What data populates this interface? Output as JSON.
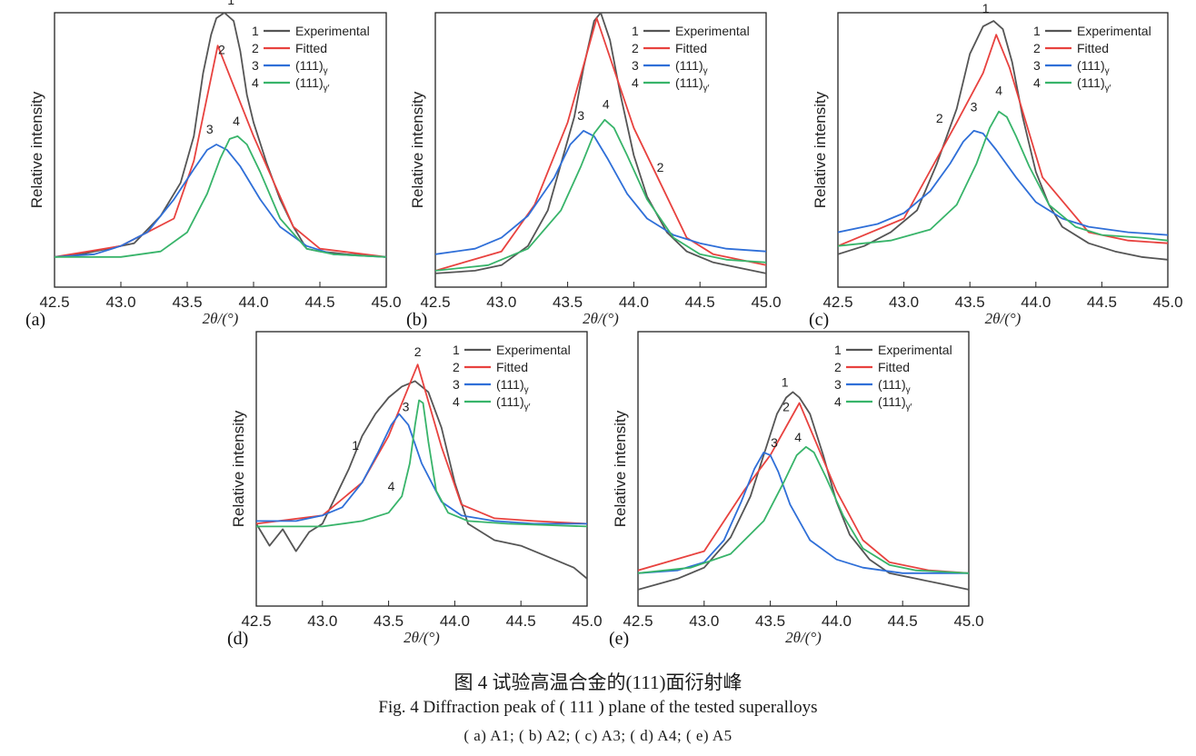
{
  "figure": {
    "caption_cn": "图 4   试验高温合金的(111)面衍射峰",
    "caption_en": "Fig. 4   Diffraction peak of ( 111 ) plane of the tested superalloys",
    "caption_sub": "( a) A1; ( b) A2; ( c) A3; ( d) A4; ( e) A5"
  },
  "chart_data": [
    {
      "type": "line",
      "panel_label": "(a)",
      "xlabel": "2θ/(°)",
      "ylabel": "Relative intensity",
      "xlim": [
        42.5,
        45.0
      ],
      "ylim": [
        0,
        1.0
      ],
      "xticks": [
        "42.5",
        "43.0",
        "43.5",
        "44.0",
        "44.5",
        "45.0"
      ],
      "legend": [
        {
          "num": "1",
          "label": "Experimental",
          "color": "#555555"
        },
        {
          "num": "2",
          "label": "Fitted",
          "color": "#e8423f"
        },
        {
          "num": "3",
          "label": "(111)γ",
          "color": "#2f6fd8"
        },
        {
          "num": "4",
          "label": "(111)γ′",
          "color": "#38b46a"
        }
      ],
      "series": [
        {
          "name": "Experimental",
          "x": [
            42.5,
            42.7,
            42.9,
            43.1,
            43.3,
            43.45,
            43.55,
            43.62,
            43.68,
            43.72,
            43.78,
            43.85,
            43.9,
            43.95,
            44.0,
            44.1,
            44.2,
            44.3,
            44.4,
            44.5,
            44.7,
            45.0
          ],
          "y": [
            0.11,
            0.12,
            0.14,
            0.16,
            0.26,
            0.38,
            0.55,
            0.78,
            0.92,
            0.98,
            1.0,
            0.97,
            0.86,
            0.7,
            0.6,
            0.45,
            0.32,
            0.22,
            0.14,
            0.13,
            0.12,
            0.11
          ]
        },
        {
          "name": "Fitted",
          "x": [
            42.5,
            43.0,
            43.4,
            43.55,
            43.73,
            44.0,
            44.3,
            44.5,
            45.0
          ],
          "y": [
            0.11,
            0.15,
            0.25,
            0.46,
            0.88,
            0.55,
            0.22,
            0.14,
            0.11
          ]
        },
        {
          "name": "(111)γ",
          "x": [
            42.5,
            42.8,
            43.0,
            43.2,
            43.4,
            43.55,
            43.65,
            43.72,
            43.8,
            43.9,
            44.05,
            44.2,
            44.4,
            44.6,
            45.0
          ],
          "y": [
            0.11,
            0.12,
            0.15,
            0.2,
            0.32,
            0.43,
            0.5,
            0.52,
            0.5,
            0.44,
            0.32,
            0.22,
            0.15,
            0.12,
            0.11
          ]
        },
        {
          "name": "(111)γ′",
          "x": [
            42.5,
            43.0,
            43.3,
            43.5,
            43.65,
            43.75,
            43.82,
            43.88,
            43.95,
            44.05,
            44.2,
            44.4,
            44.6,
            45.0
          ],
          "y": [
            0.11,
            0.11,
            0.13,
            0.2,
            0.34,
            0.47,
            0.54,
            0.55,
            0.52,
            0.42,
            0.25,
            0.14,
            0.12,
            0.11
          ]
        }
      ],
      "annotations": [
        {
          "text": "1",
          "x": 43.83,
          "y": 1.03
        },
        {
          "text": "2",
          "x": 43.76,
          "y": 0.85
        },
        {
          "text": "3",
          "x": 43.67,
          "y": 0.56
        },
        {
          "text": "4",
          "x": 43.87,
          "y": 0.59
        }
      ]
    },
    {
      "type": "line",
      "panel_label": "(b)",
      "xlabel": "2θ/(°)",
      "ylabel": "Relative intensity",
      "xlim": [
        42.5,
        45.0
      ],
      "ylim": [
        0,
        1.0
      ],
      "xticks": [
        "42.5",
        "43.0",
        "43.5",
        "44.0",
        "44.5",
        "45.0"
      ],
      "legend": [
        {
          "num": "1",
          "label": "Experimental",
          "color": "#555555"
        },
        {
          "num": "2",
          "label": "Fitted",
          "color": "#e8423f"
        },
        {
          "num": "3",
          "label": "(111)γ",
          "color": "#2f6fd8"
        },
        {
          "num": "4",
          "label": "(111)γ′",
          "color": "#38b46a"
        }
      ],
      "series": [
        {
          "name": "Experimental",
          "x": [
            42.5,
            42.8,
            43.0,
            43.2,
            43.35,
            43.45,
            43.55,
            43.62,
            43.7,
            43.75,
            43.82,
            43.9,
            44.0,
            44.1,
            44.25,
            44.4,
            44.6,
            44.8,
            45.0
          ],
          "y": [
            0.05,
            0.06,
            0.08,
            0.15,
            0.28,
            0.45,
            0.62,
            0.8,
            0.97,
            1.0,
            0.9,
            0.7,
            0.48,
            0.33,
            0.2,
            0.13,
            0.09,
            0.07,
            0.05
          ]
        },
        {
          "name": "Fitted",
          "x": [
            42.5,
            43.0,
            43.25,
            43.5,
            43.72,
            44.0,
            44.2,
            44.4,
            44.6,
            45.0
          ],
          "y": [
            0.06,
            0.13,
            0.3,
            0.6,
            0.98,
            0.58,
            0.38,
            0.18,
            0.12,
            0.08
          ]
        },
        {
          "name": "(111)γ",
          "x": [
            42.5,
            42.8,
            43.0,
            43.2,
            43.4,
            43.52,
            43.62,
            43.7,
            43.8,
            43.95,
            44.1,
            44.3,
            44.5,
            44.7,
            45.0
          ],
          "y": [
            0.12,
            0.14,
            0.18,
            0.26,
            0.4,
            0.52,
            0.57,
            0.55,
            0.47,
            0.34,
            0.25,
            0.19,
            0.16,
            0.14,
            0.13
          ]
        },
        {
          "name": "(111)γ′",
          "x": [
            42.5,
            42.9,
            43.2,
            43.45,
            43.6,
            43.7,
            43.78,
            43.85,
            43.95,
            44.1,
            44.3,
            44.5,
            44.7,
            45.0
          ],
          "y": [
            0.06,
            0.08,
            0.14,
            0.28,
            0.44,
            0.56,
            0.61,
            0.58,
            0.48,
            0.32,
            0.18,
            0.12,
            0.1,
            0.09
          ]
        }
      ],
      "annotations": [
        {
          "text": "1",
          "x": 43.74,
          "y": 1.05
        },
        {
          "text": "2",
          "x": 44.2,
          "y": 0.42
        },
        {
          "text": "3",
          "x": 43.6,
          "y": 0.61
        },
        {
          "text": "4",
          "x": 43.79,
          "y": 0.65
        }
      ]
    },
    {
      "type": "line",
      "panel_label": "(c)",
      "xlabel": "2θ/(°)",
      "ylabel": "Relative intensity",
      "xlim": [
        42.5,
        45.0
      ],
      "ylim": [
        0,
        1.0
      ],
      "xticks": [
        "42.5",
        "43.0",
        "43.5",
        "44.0",
        "44.5",
        "45.0"
      ],
      "legend": [
        {
          "num": "1",
          "label": "Experimental",
          "color": "#555555"
        },
        {
          "num": "2",
          "label": "Fitted",
          "color": "#e8423f"
        },
        {
          "num": "3",
          "label": "(111)γ",
          "color": "#2f6fd8"
        },
        {
          "num": "4",
          "label": "(111)γ′",
          "color": "#38b46a"
        }
      ],
      "series": [
        {
          "name": "Experimental",
          "x": [
            42.5,
            42.7,
            42.9,
            43.1,
            43.25,
            43.4,
            43.5,
            43.6,
            43.68,
            43.75,
            43.82,
            43.9,
            44.0,
            44.1,
            44.2,
            44.4,
            44.6,
            44.8,
            45.0
          ],
          "y": [
            0.12,
            0.15,
            0.2,
            0.28,
            0.45,
            0.65,
            0.85,
            0.95,
            0.97,
            0.94,
            0.82,
            0.62,
            0.42,
            0.3,
            0.22,
            0.16,
            0.13,
            0.11,
            0.1
          ]
        },
        {
          "name": "Fitted",
          "x": [
            42.5,
            43.0,
            43.4,
            43.6,
            43.7,
            43.8,
            44.05,
            44.4,
            44.7,
            45.0
          ],
          "y": [
            0.15,
            0.25,
            0.6,
            0.78,
            0.92,
            0.8,
            0.4,
            0.2,
            0.17,
            0.16
          ]
        },
        {
          "name": "(111)γ",
          "x": [
            42.5,
            42.8,
            43.0,
            43.2,
            43.35,
            43.45,
            43.53,
            43.6,
            43.7,
            43.85,
            44.0,
            44.2,
            44.4,
            44.7,
            45.0
          ],
          "y": [
            0.2,
            0.23,
            0.27,
            0.35,
            0.45,
            0.53,
            0.57,
            0.56,
            0.5,
            0.4,
            0.31,
            0.25,
            0.22,
            0.2,
            0.19
          ]
        },
        {
          "name": "(111)γ′",
          "x": [
            42.5,
            42.9,
            43.2,
            43.4,
            43.55,
            43.65,
            43.72,
            43.78,
            43.85,
            43.95,
            44.1,
            44.3,
            44.5,
            44.8,
            45.0
          ],
          "y": [
            0.15,
            0.17,
            0.21,
            0.3,
            0.45,
            0.58,
            0.64,
            0.62,
            0.55,
            0.44,
            0.3,
            0.22,
            0.19,
            0.18,
            0.17
          ]
        }
      ],
      "annotations": [
        {
          "text": "1",
          "x": 43.62,
          "y": 1.0
        },
        {
          "text": "2",
          "x": 43.27,
          "y": 0.6
        },
        {
          "text": "3",
          "x": 43.53,
          "y": 0.64
        },
        {
          "text": "4",
          "x": 43.72,
          "y": 0.7
        }
      ]
    },
    {
      "type": "line",
      "panel_label": "(d)",
      "xlabel": "2θ/(°)",
      "ylabel": "Relative intensity",
      "xlim": [
        42.5,
        45.0
      ],
      "ylim": [
        0,
        1.0
      ],
      "xticks": [
        "42.5",
        "43.0",
        "43.5",
        "44.0",
        "44.5",
        "45.0"
      ],
      "legend": [
        {
          "num": "1",
          "label": "Experimental",
          "color": "#555555"
        },
        {
          "num": "2",
          "label": "Fitted",
          "color": "#e8423f"
        },
        {
          "num": "3",
          "label": "(111)γ",
          "color": "#2f6fd8"
        },
        {
          "num": "4",
          "label": "(111)γ′",
          "color": "#38b46a"
        }
      ],
      "series": [
        {
          "name": "Experimental",
          "x": [
            42.5,
            42.6,
            42.7,
            42.8,
            42.9,
            43.0,
            43.1,
            43.2,
            43.3,
            43.4,
            43.5,
            43.6,
            43.7,
            43.8,
            43.9,
            44.0,
            44.1,
            44.3,
            44.5,
            44.7,
            44.9,
            45.0
          ],
          "y": [
            0.3,
            0.22,
            0.28,
            0.2,
            0.27,
            0.3,
            0.4,
            0.5,
            0.62,
            0.7,
            0.76,
            0.8,
            0.82,
            0.78,
            0.65,
            0.45,
            0.3,
            0.24,
            0.22,
            0.18,
            0.14,
            0.1
          ]
        },
        {
          "name": "Fitted",
          "x": [
            42.5,
            43.0,
            43.3,
            43.5,
            43.72,
            43.9,
            44.05,
            44.3,
            44.6,
            45.0
          ],
          "y": [
            0.3,
            0.33,
            0.45,
            0.62,
            0.88,
            0.58,
            0.37,
            0.32,
            0.31,
            0.3
          ]
        },
        {
          "name": "(111)γ",
          "x": [
            42.5,
            42.8,
            43.0,
            43.15,
            43.3,
            43.42,
            43.52,
            43.58,
            43.65,
            43.75,
            43.9,
            44.05,
            44.3,
            44.6,
            45.0
          ],
          "y": [
            0.31,
            0.31,
            0.33,
            0.36,
            0.45,
            0.56,
            0.66,
            0.7,
            0.66,
            0.52,
            0.38,
            0.33,
            0.31,
            0.3,
            0.3
          ]
        },
        {
          "name": "(111)γ′",
          "x": [
            42.5,
            43.0,
            43.3,
            43.5,
            43.6,
            43.66,
            43.7,
            43.73,
            43.76,
            43.8,
            43.86,
            43.95,
            44.1,
            44.4,
            45.0
          ],
          "y": [
            0.29,
            0.29,
            0.31,
            0.34,
            0.4,
            0.52,
            0.66,
            0.75,
            0.74,
            0.6,
            0.42,
            0.34,
            0.31,
            0.3,
            0.29
          ]
        }
      ],
      "annotations": [
        {
          "text": "1",
          "x": 43.25,
          "y": 0.57
        },
        {
          "text": "2",
          "x": 43.72,
          "y": 0.91
        },
        {
          "text": "3",
          "x": 43.63,
          "y": 0.71
        },
        {
          "text": "4",
          "x": 43.52,
          "y": 0.42
        }
      ]
    },
    {
      "type": "line",
      "panel_label": "(e)",
      "xlabel": "2θ/(°)",
      "ylabel": "Relative intensity",
      "xlim": [
        42.5,
        45.0
      ],
      "ylim": [
        0,
        1.0
      ],
      "xticks": [
        "42.5",
        "43.0",
        "43.5",
        "44.0",
        "44.5",
        "45.0"
      ],
      "legend": [
        {
          "num": "1",
          "label": "Experimental",
          "color": "#555555"
        },
        {
          "num": "2",
          "label": "Fitted",
          "color": "#e8423f"
        },
        {
          "num": "3",
          "label": "(111)γ",
          "color": "#2f6fd8"
        },
        {
          "num": "4",
          "label": "(111)γ′",
          "color": "#38b46a"
        }
      ],
      "series": [
        {
          "name": "Experimental",
          "x": [
            42.5,
            42.8,
            43.0,
            43.2,
            43.35,
            43.45,
            43.55,
            43.62,
            43.67,
            43.72,
            43.8,
            43.9,
            44.0,
            44.1,
            44.25,
            44.4,
            44.6,
            44.8,
            45.0
          ],
          "y": [
            0.06,
            0.1,
            0.14,
            0.25,
            0.4,
            0.55,
            0.7,
            0.76,
            0.78,
            0.76,
            0.7,
            0.55,
            0.38,
            0.26,
            0.17,
            0.12,
            0.1,
            0.08,
            0.06
          ]
        },
        {
          "name": "Fitted",
          "x": [
            42.5,
            43.0,
            43.3,
            43.5,
            43.72,
            44.0,
            44.2,
            44.4,
            44.7,
            45.0
          ],
          "y": [
            0.13,
            0.2,
            0.42,
            0.55,
            0.74,
            0.42,
            0.24,
            0.16,
            0.13,
            0.12
          ]
        },
        {
          "name": "(111)γ",
          "x": [
            42.5,
            42.8,
            43.0,
            43.15,
            43.28,
            43.38,
            43.45,
            43.5,
            43.56,
            43.65,
            43.8,
            44.0,
            44.2,
            44.5,
            45.0
          ],
          "y": [
            0.12,
            0.13,
            0.16,
            0.24,
            0.38,
            0.5,
            0.56,
            0.55,
            0.49,
            0.37,
            0.24,
            0.17,
            0.14,
            0.12,
            0.12
          ]
        },
        {
          "name": "(111)γ′",
          "x": [
            42.5,
            42.9,
            43.2,
            43.45,
            43.6,
            43.7,
            43.77,
            43.83,
            43.92,
            44.05,
            44.2,
            44.4,
            44.6,
            45.0
          ],
          "y": [
            0.12,
            0.14,
            0.19,
            0.31,
            0.45,
            0.55,
            0.58,
            0.56,
            0.47,
            0.33,
            0.21,
            0.15,
            0.13,
            0.12
          ]
        }
      ],
      "annotations": [
        {
          "text": "1",
          "x": 43.61,
          "y": 0.8
        },
        {
          "text": "2",
          "x": 43.62,
          "y": 0.71
        },
        {
          "text": "3",
          "x": 43.53,
          "y": 0.58
        },
        {
          "text": "4",
          "x": 43.71,
          "y": 0.6
        }
      ]
    }
  ]
}
